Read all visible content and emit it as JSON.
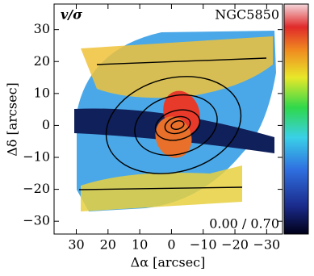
{
  "chart_data": {
    "type": "map",
    "title": "v/σ",
    "object": "NGC5850",
    "range_label": "0.00 / 0.70",
    "x_label": "Δα [arcsec]",
    "y_label": "Δδ [arcsec]",
    "xlim": [
      37,
      -35
    ],
    "ylim": [
      -34,
      38
    ],
    "xticks": [
      30,
      20,
      10,
      0,
      {
        "value": -10,
        "label": "−10"
      },
      {
        "value": -20,
        "label": "−20"
      },
      {
        "value": -30,
        "label": "−30"
      }
    ],
    "yticks": [
      {
        "value": -30,
        "label": "−30"
      },
      {
        "value": -20,
        "label": "−20"
      },
      {
        "value": -10,
        "label": "−10"
      },
      0,
      10,
      20,
      30
    ]
  }
}
